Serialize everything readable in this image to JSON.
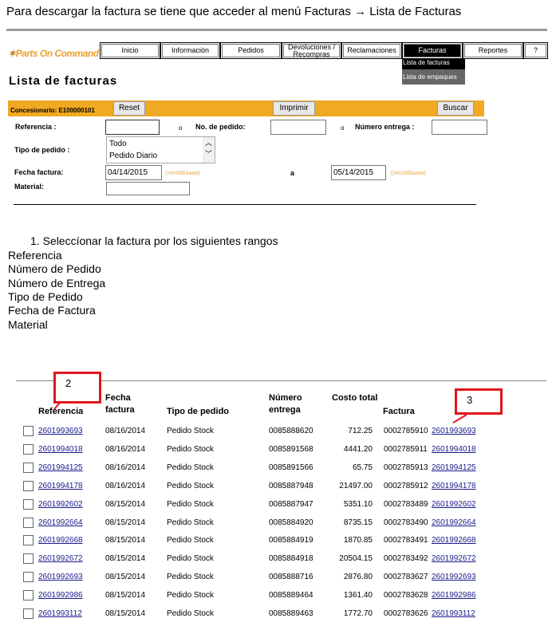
{
  "instruction": "Para descargar la factura se tiene que acceder al menú Facturas → Lista de Facturas",
  "logo": {
    "part1": "Parts ",
    "part2": "On Command"
  },
  "nav": [
    "Inicio",
    "Información",
    "Pedidos",
    "Devoluciones / Recompras",
    "Reclamaciones",
    "Facturas",
    "Reportes",
    "?"
  ],
  "dropdown": [
    "Lista de facturas",
    "Lista de empaques"
  ],
  "page_title": "Lista de facturas",
  "toolbar": {
    "dealer": "Concesionario: E100000101",
    "reset": "Reset",
    "print": "Imprimir",
    "search": "Buscar"
  },
  "form": {
    "referencia": "Referencia :",
    "or": "o",
    "pedido": "No. de pedido:",
    "entrega": "Número entrega :",
    "tipo": "Tipo de pedido :",
    "tipo_options": [
      "Todo",
      "Pedido Diario"
    ],
    "fecha": "Fecha factura:",
    "fecha_from": "04/14/2015",
    "fecha_to": "05/14/2015",
    "a": "a",
    "hint": "(mm/dd/aaaa)",
    "material": "Material:"
  },
  "steps": {
    "item1": "1.   Seleccíonar la factura por los siguientes rangos",
    "ranges": [
      "Referencia",
      "Número de Pedido",
      "Número de Entrega",
      "Tipo de Pedido",
      "Fecha de Factura",
      "Material"
    ]
  },
  "callouts": [
    "2",
    "3"
  ],
  "accent": "#f0a923",
  "table": {
    "headers": [
      "Referencia",
      "Fecha factura",
      "Tipo de pedido",
      "Número entrega",
      "Costo total",
      "Factura"
    ],
    "rows": [
      [
        "2601993693",
        "08/16/2014",
        "Pedido Stock",
        "0085888620",
        "712.25",
        "0002785910",
        "2601993693"
      ],
      [
        "2601994018",
        "08/16/2014",
        "Pedido Stock",
        "0085891568",
        "4441.20",
        "0002785911",
        "2601994018"
      ],
      [
        "2601994125",
        "08/16/2014",
        "Pedido Stock",
        "0085891566",
        "65.75",
        "0002785913",
        "2601994125"
      ],
      [
        "2601994178",
        "08/16/2014",
        "Pedido Stock",
        "0085887948",
        "21497.00",
        "0002785912",
        "2601994178"
      ],
      [
        "2601992602",
        "08/15/2014",
        "Pedido Stock",
        "0085887947",
        "5351.10",
        "0002783489",
        "2601992602"
      ],
      [
        "2601992664",
        "08/15/2014",
        "Pedido Stock",
        "0085884920",
        "8735.15",
        "0002783490",
        "2601992664"
      ],
      [
        "2601992668",
        "08/15/2014",
        "Pedido Stock",
        "0085884919",
        "1870.85",
        "0002783491",
        "2601992668"
      ],
      [
        "2601992672",
        "08/15/2014",
        "Pedido Stock",
        "0085884918",
        "20504.15",
        "0002783492",
        "2601992672"
      ],
      [
        "2601992693",
        "08/15/2014",
        "Pedido Stock",
        "0085888716",
        "2876.80",
        "0002783627",
        "2601992693"
      ],
      [
        "2601992986",
        "08/15/2014",
        "Pedido Stock",
        "0085889464",
        "1361.40",
        "0002783628",
        "2601992986"
      ],
      [
        "2601993112",
        "08/15/2014",
        "Pedido Stock",
        "0085889463",
        "1772.70",
        "0002783626",
        "2601993112"
      ]
    ]
  }
}
